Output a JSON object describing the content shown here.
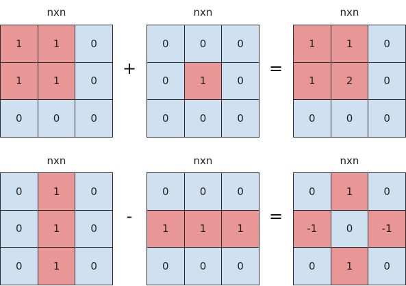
{
  "colors": {
    "highlight": "#e99796",
    "base": "#cfe0f1",
    "border": "#2b2b2b"
  },
  "rows": [
    {
      "matrices": [
        {
          "label": "nxn",
          "cells": [
            [
              "1",
              "1",
              "0"
            ],
            [
              "1",
              "1",
              "0"
            ],
            [
              "0",
              "0",
              "0"
            ]
          ],
          "highlight": [
            [
              1,
              1,
              0
            ],
            [
              1,
              1,
              0
            ],
            [
              0,
              0,
              0
            ]
          ]
        },
        {
          "label": "nxn",
          "cells": [
            [
              "0",
              "0",
              "0"
            ],
            [
              "0",
              "1",
              "0"
            ],
            [
              "0",
              "0",
              "0"
            ]
          ],
          "highlight": [
            [
              0,
              0,
              0
            ],
            [
              0,
              1,
              0
            ],
            [
              0,
              0,
              0
            ]
          ]
        },
        {
          "label": "nxn",
          "cells": [
            [
              "1",
              "1",
              "0"
            ],
            [
              "1",
              "2",
              "0"
            ],
            [
              "0",
              "0",
              "0"
            ]
          ],
          "highlight": [
            [
              1,
              1,
              0
            ],
            [
              1,
              1,
              0
            ],
            [
              0,
              0,
              0
            ]
          ]
        }
      ],
      "operators": [
        "+",
        "="
      ]
    },
    {
      "matrices": [
        {
          "label": "nxn",
          "cells": [
            [
              "0",
              "1",
              "0"
            ],
            [
              "0",
              "1",
              "0"
            ],
            [
              "0",
              "1",
              "0"
            ]
          ],
          "highlight": [
            [
              0,
              1,
              0
            ],
            [
              0,
              1,
              0
            ],
            [
              0,
              1,
              0
            ]
          ]
        },
        {
          "label": "nxn",
          "cells": [
            [
              "0",
              "0",
              "0"
            ],
            [
              "1",
              "1",
              "1"
            ],
            [
              "0",
              "0",
              "0"
            ]
          ],
          "highlight": [
            [
              0,
              0,
              0
            ],
            [
              1,
              1,
              1
            ],
            [
              0,
              0,
              0
            ]
          ]
        },
        {
          "label": "nxn",
          "cells": [
            [
              "0",
              "1",
              "0"
            ],
            [
              "-1",
              "0",
              "-1"
            ],
            [
              "0",
              "1",
              "0"
            ]
          ],
          "highlight": [
            [
              0,
              1,
              0
            ],
            [
              1,
              0,
              1
            ],
            [
              0,
              1,
              0
            ]
          ]
        }
      ],
      "operators": [
        "-",
        "="
      ]
    }
  ]
}
